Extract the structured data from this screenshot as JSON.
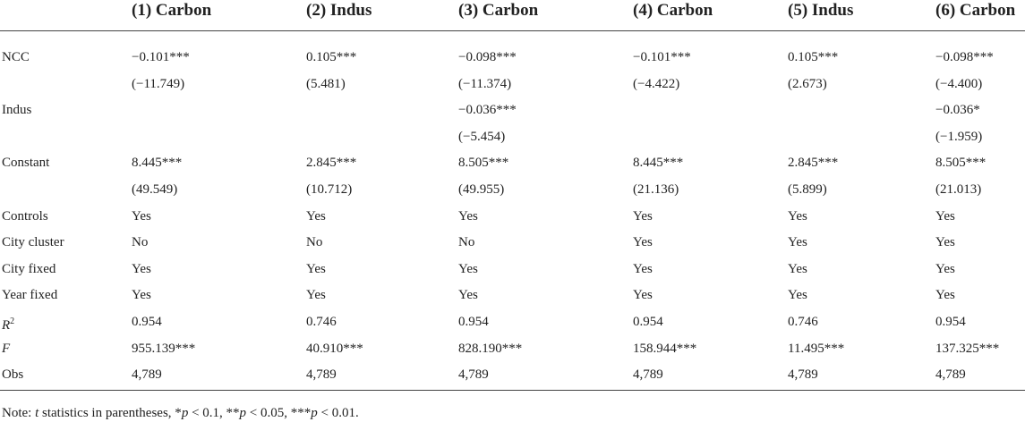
{
  "table": {
    "header": [
      "(1) Carbon",
      "(2) Indus",
      "(3) Carbon",
      "(4) Carbon",
      "(5) Indus",
      "(6) Carbon"
    ],
    "rows": [
      {
        "label": "NCC",
        "cells": [
          "−0.101***",
          "0.105***",
          "−0.098***",
          "−0.101***",
          "0.105***",
          "−0.098***"
        ]
      },
      {
        "label": null,
        "cells": [
          "(−11.749)",
          "(5.481)",
          "(−11.374)",
          "(−4.422)",
          "(2.673)",
          "(−4.400)"
        ]
      },
      {
        "label": "Indus",
        "cells": [
          null,
          null,
          "−0.036***",
          null,
          null,
          "−0.036*"
        ]
      },
      {
        "label": null,
        "cells": [
          null,
          null,
          "(−5.454)",
          null,
          null,
          "(−1.959)"
        ]
      },
      {
        "label": "Constant",
        "cells": [
          "8.445***",
          "2.845***",
          "8.505***",
          "8.445***",
          "2.845***",
          "8.505***"
        ]
      },
      {
        "label": null,
        "cells": [
          "(49.549)",
          "(10.712)",
          "(49.955)",
          "(21.136)",
          "(5.899)",
          "(21.013)"
        ]
      },
      {
        "label": "Controls",
        "cells": [
          "Yes",
          "Yes",
          "Yes",
          "Yes",
          "Yes",
          "Yes"
        ]
      },
      {
        "label": "City cluster",
        "cells": [
          "No",
          "No",
          "No",
          "Yes",
          "Yes",
          "Yes"
        ]
      },
      {
        "label": "City fixed",
        "cells": [
          "Yes",
          "Yes",
          "Yes",
          "Yes",
          "Yes",
          "Yes"
        ]
      },
      {
        "label": "Year fixed",
        "cells": [
          "Yes",
          "Yes",
          "Yes",
          "Yes",
          "Yes",
          "Yes"
        ]
      },
      {
        "label": "R",
        "label_sup": "2",
        "italic": true,
        "cells": [
          "0.954",
          "0.746",
          "0.954",
          "0.954",
          "0.746",
          "0.954"
        ]
      },
      {
        "label": "F",
        "italic": true,
        "cells": [
          "955.139***",
          "40.910***",
          "828.190***",
          "158.944***",
          "11.495***",
          "137.325***"
        ]
      },
      {
        "label": "Obs",
        "cells": [
          "4,789",
          "4,789",
          "4,789",
          "4,789",
          "4,789",
          "4,789"
        ]
      }
    ],
    "note": [
      "Note: ",
      "t",
      " statistics in parentheses, *",
      "p",
      " < 0.1, **",
      "p",
      " < 0.05, ***",
      "p",
      " < 0.01."
    ]
  }
}
